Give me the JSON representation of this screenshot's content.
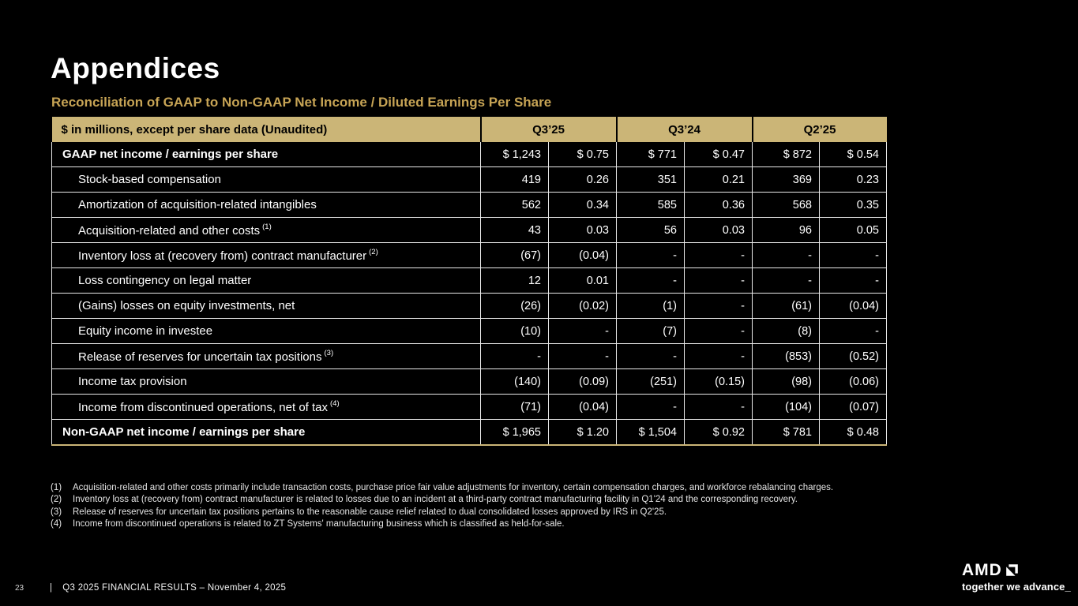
{
  "slide": {
    "title": "Appendices",
    "subtitle": "Reconciliation of GAAP to Non-GAAP Net Income / Diluted Earnings Per Share"
  },
  "table": {
    "header": {
      "label": "$ in millions, except per share data (Unaudited)",
      "quarters": [
        "Q3’25",
        "Q3’24",
        "Q2’25"
      ]
    },
    "rows": [
      {
        "label": "GAAP net income / earnings per share",
        "sup": "",
        "style": "total",
        "values": [
          "$ 1,243",
          "$ 0.75",
          "$ 771",
          "$ 0.47",
          "$ 872",
          "$ 0.54"
        ]
      },
      {
        "label": "Stock-based compensation",
        "sup": "",
        "style": "item",
        "values": [
          "419",
          "0.26",
          "351",
          "0.21",
          "369",
          "0.23"
        ]
      },
      {
        "label": "Amortization of acquisition-related intangibles",
        "sup": "",
        "style": "item",
        "values": [
          "562",
          "0.34",
          "585",
          "0.36",
          "568",
          "0.35"
        ]
      },
      {
        "label": "Acquisition-related and other costs",
        "sup": "(1)",
        "style": "item",
        "values": [
          "43",
          "0.03",
          "56",
          "0.03",
          "96",
          "0.05"
        ]
      },
      {
        "label": "Inventory loss at (recovery from) contract manufacturer",
        "sup": "(2)",
        "style": "item",
        "values": [
          "(67)",
          "(0.04)",
          "-",
          "-",
          "-",
          "-"
        ]
      },
      {
        "label": "Loss contingency on legal matter",
        "sup": "",
        "style": "item",
        "values": [
          "12",
          "0.01",
          "-",
          "-",
          "-",
          "-"
        ]
      },
      {
        "label": "(Gains) losses on equity investments, net",
        "sup": "",
        "style": "item",
        "values": [
          "(26)",
          "(0.02)",
          "(1)",
          "-",
          "(61)",
          "(0.04)"
        ]
      },
      {
        "label": "Equity income in investee",
        "sup": "",
        "style": "item",
        "values": [
          "(10)",
          "-",
          "(7)",
          "-",
          "(8)",
          "-"
        ]
      },
      {
        "label": "Release of reserves for uncertain tax positions",
        "sup": "(3)",
        "style": "item",
        "values": [
          "-",
          "-",
          "-",
          "-",
          "(853)",
          "(0.52)"
        ]
      },
      {
        "label": "Income tax provision",
        "sup": "",
        "style": "item",
        "values": [
          "(140)",
          "(0.09)",
          "(251)",
          "(0.15)",
          "(98)",
          "(0.06)"
        ]
      },
      {
        "label": "Income from discontinued operations, net of tax",
        "sup": "(4)",
        "style": "item",
        "values": [
          "(71)",
          "(0.04)",
          "-",
          "-",
          "(104)",
          "(0.07)"
        ]
      },
      {
        "label": "Non-GAAP net income / earnings per share",
        "sup": "",
        "style": "total",
        "values": [
          "$ 1,965",
          "$ 1.20",
          "$ 1,504",
          "$ 0.92",
          "$ 781",
          "$ 0.48"
        ]
      }
    ]
  },
  "footnotes": [
    {
      "num": "(1)",
      "text": "Acquisition-related and other costs primarily include transaction costs, purchase price fair value adjustments for inventory, certain compensation charges, and workforce rebalancing charges."
    },
    {
      "num": "(2)",
      "text": "Inventory loss at (recovery from) contract manufacturer is related to losses due to an incident at a third-party contract manufacturing facility in Q1'24 and the corresponding recovery."
    },
    {
      "num": "(3)",
      "text": "Release of reserves for uncertain tax positions pertains to the reasonable cause relief related to dual consolidated losses approved by IRS in Q2'25."
    },
    {
      "num": "(4)",
      "text": "Income from discontinued operations is related to ZT Systems' manufacturing business which is classified as held-for-sale."
    }
  ],
  "footer": {
    "page_number": "23",
    "separator": "|",
    "text": "Q3 2025 FINANCIAL RESULTS – November 4, 2025",
    "logo_text": "AMD",
    "tagline": "together we advance_"
  },
  "colors": {
    "background": "#000000",
    "gold_accent": "#C7A455",
    "table_header_bg": "#CBB577",
    "grid_line": "#E9E9E9",
    "text": "#FFFFFF"
  }
}
